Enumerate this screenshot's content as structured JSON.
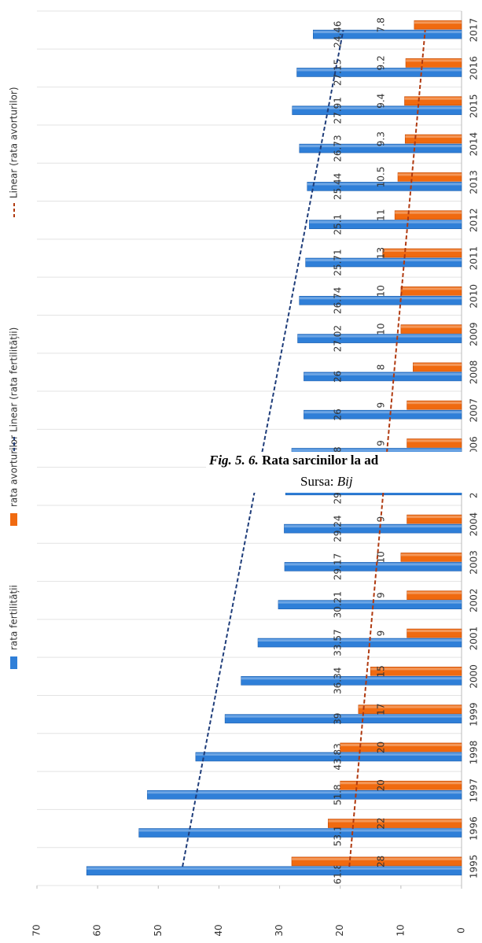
{
  "chart_data": {
    "type": "bar",
    "categories": [
      "1995",
      "1996",
      "1997",
      "1998",
      "1999",
      "2000",
      "2001",
      "2002",
      "2003",
      "2004",
      "2005",
      "2006",
      "2007",
      "2008",
      "2009",
      "2010",
      "2011",
      "2012",
      "2013",
      "2014",
      "2015",
      "2016",
      "2017"
    ],
    "series": [
      {
        "name": "rata fertilității",
        "color": "#2f7fd8",
        "values": [
          61.81,
          53.19,
          51.8,
          43.83,
          39,
          36.34,
          33.57,
          30.21,
          29.17,
          29.24,
          29.01,
          28,
          26,
          26,
          27.02,
          26.74,
          25.71,
          25.1,
          25.44,
          26.73,
          27.91,
          27.15,
          24.46
        ]
      },
      {
        "name": "rata avorturilor",
        "color": "#f06a10",
        "values": [
          28,
          22,
          20,
          20,
          17,
          15,
          9,
          9,
          10,
          9,
          9,
          9,
          9,
          8,
          10,
          10,
          13,
          11,
          10.5,
          9.3,
          9.4,
          9.2,
          7.8
        ]
      }
    ],
    "trendlines": [
      {
        "name": "Linear (rata fertilității)",
        "color": "#1f3d7a",
        "start": 46,
        "end": 19.5
      },
      {
        "name": "Linear (rata avorturilor)",
        "color": "#b03a10",
        "start": 18.5,
        "end": 6
      }
    ],
    "xlim": [
      0,
      70
    ],
    "xticks": [
      0,
      10,
      20,
      30,
      40,
      50,
      60,
      70
    ],
    "caption": {
      "figure": "Fig. 5. 6.",
      "title": "Rata sarcinilor la ad",
      "source_label": "Sursa:",
      "source": "Bij"
    }
  }
}
